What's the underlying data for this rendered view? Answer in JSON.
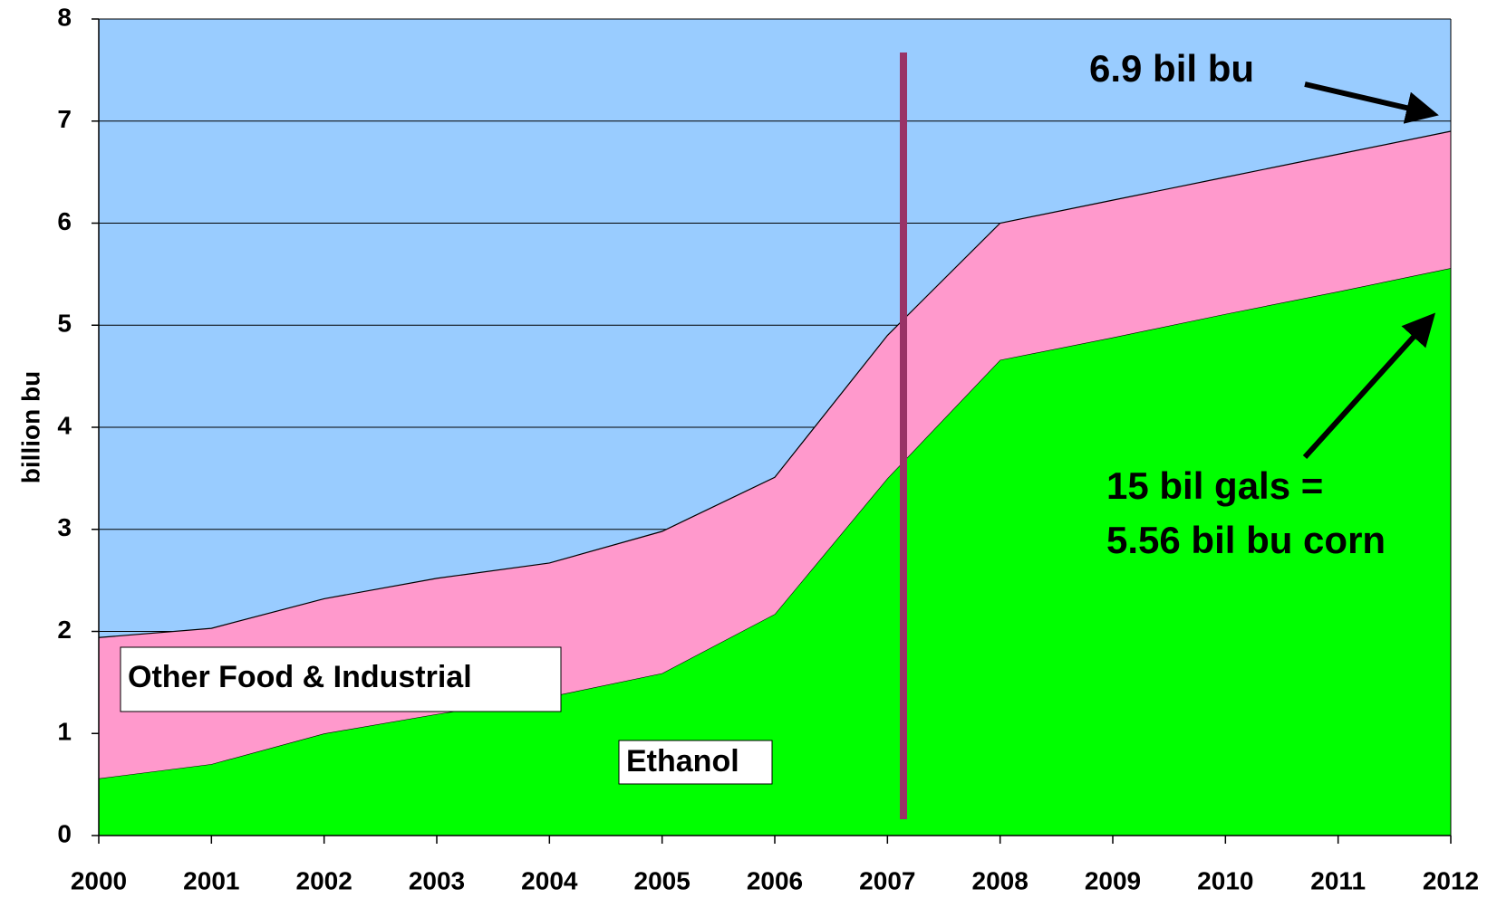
{
  "chart_data": {
    "type": "stacked-area",
    "y_label": "billion bu",
    "x": [
      2000,
      2001,
      2002,
      2003,
      2004,
      2005,
      2006,
      2007,
      2008,
      2009,
      2010,
      2011,
      2012
    ],
    "series": [
      {
        "name": "Ethanol",
        "color": "#00ff00",
        "values": [
          0.56,
          0.7,
          1.0,
          1.19,
          1.36,
          1.59,
          2.17,
          3.5,
          4.66,
          4.88,
          5.11,
          5.33,
          5.56
        ]
      },
      {
        "name": "Other Food & Industrial",
        "color": "#ff99cc",
        "values": [
          1.38,
          1.33,
          1.32,
          1.33,
          1.31,
          1.39,
          1.34,
          1.4,
          1.34,
          1.345,
          1.34,
          1.345,
          1.34
        ]
      }
    ],
    "background_color": "#99ccff",
    "xlim": [
      2000,
      2012
    ],
    "xticks": [
      2000,
      2001,
      2002,
      2003,
      2004,
      2005,
      2006,
      2007,
      2008,
      2009,
      2010,
      2011,
      2012
    ],
    "ylim": [
      0,
      8
    ],
    "yticks": [
      0,
      1,
      2,
      3,
      4,
      5,
      6,
      7,
      8
    ],
    "grid": true,
    "annotations": [
      "6.9 bil bu",
      "15 bil gals =",
      "5.56 bil bu corn"
    ]
  }
}
